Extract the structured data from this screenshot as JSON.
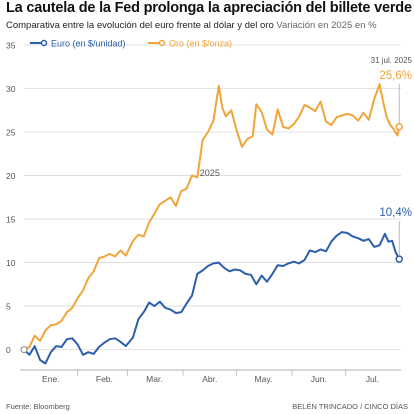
{
  "header": {
    "title": "La cautela de la Fed prolonga la apreciación del billete verde",
    "subtitle": "Comparativa entre la evolución del euro frente al dólar y del oro",
    "subtitle_note": "Variación en 2025 en %"
  },
  "footer": {
    "source": "Fuente: Bloomberg",
    "credit": "BELÉN TRINCADO / CINCO DÍAS"
  },
  "colors": {
    "euro": "#2b5fab",
    "gold": "#f0a53a",
    "grid": "#d9d9d9",
    "axis_text": "#555555"
  },
  "chart_data": {
    "type": "line",
    "title": "La cautela de la Fed prolonga la apreciación del billete verde",
    "subtitle": "Comparativa entre la evolución del euro frente al dólar y del oro Variación en 2025 en %",
    "x_unit": "day of year 2025",
    "x_range": [
      1,
      212
    ],
    "ylim": [
      -2,
      35
    ],
    "yticks": [
      0,
      5,
      10,
      15,
      20,
      25,
      30,
      35
    ],
    "months": [
      {
        "label": "Ene.",
        "day": 16
      },
      {
        "label": "Feb.",
        "day": 46
      },
      {
        "label": "Mar.",
        "day": 74
      },
      {
        "label": "Abr.",
        "day": 105
      },
      {
        "label": "May.",
        "day": 135
      },
      {
        "label": "Jun.",
        "day": 166
      },
      {
        "label": "Jul.",
        "day": 196
      }
    ],
    "year_label": "2025",
    "year_label_day": 105,
    "end_date_label": "31 jul. 2025",
    "legend_position": "top-left",
    "grid": true,
    "series": [
      {
        "name": "Euro (en $/unidad)",
        "end_label": "10,4%",
        "points": [
          [
            1,
            0
          ],
          [
            4,
            -0.6
          ],
          [
            7,
            0.4
          ],
          [
            10,
            -1.2
          ],
          [
            13,
            -1.6
          ],
          [
            16,
            -0.3
          ],
          [
            19,
            0.4
          ],
          [
            22,
            0.3
          ],
          [
            25,
            1.2
          ],
          [
            28,
            1.3
          ],
          [
            31,
            0.6
          ],
          [
            34,
            -0.6
          ],
          [
            37,
            -0.3
          ],
          [
            40,
            -0.5
          ],
          [
            43,
            0.3
          ],
          [
            46,
            0.8
          ],
          [
            49,
            1.2
          ],
          [
            52,
            1.3
          ],
          [
            55,
            0.9
          ],
          [
            58,
            0.4
          ],
          [
            62,
            1.4
          ],
          [
            65,
            3.5
          ],
          [
            68,
            4.3
          ],
          [
            71,
            5.4
          ],
          [
            74,
            5.0
          ],
          [
            77,
            5.5
          ],
          [
            80,
            4.8
          ],
          [
            83,
            4.6
          ],
          [
            86,
            4.2
          ],
          [
            89,
            4.3
          ],
          [
            92,
            5.3
          ],
          [
            95,
            6.2
          ],
          [
            98,
            8.7
          ],
          [
            101,
            9.1
          ],
          [
            104,
            9.6
          ],
          [
            107,
            9.9
          ],
          [
            110,
            10.0
          ],
          [
            113,
            9.4
          ],
          [
            116,
            9.0
          ],
          [
            119,
            9.2
          ],
          [
            122,
            9.1
          ],
          [
            125,
            8.7
          ],
          [
            128,
            8.6
          ],
          [
            131,
            7.5
          ],
          [
            134,
            8.5
          ],
          [
            137,
            7.8
          ],
          [
            140,
            8.7
          ],
          [
            143,
            9.7
          ],
          [
            146,
            9.6
          ],
          [
            149,
            9.9
          ],
          [
            152,
            10.1
          ],
          [
            155,
            9.9
          ],
          [
            158,
            10.3
          ],
          [
            161,
            11.4
          ],
          [
            164,
            11.2
          ],
          [
            167,
            11.5
          ],
          [
            170,
            11.3
          ],
          [
            173,
            12.4
          ],
          [
            176,
            13.1
          ],
          [
            179,
            13.5
          ],
          [
            182,
            13.4
          ],
          [
            185,
            13.0
          ],
          [
            188,
            12.8
          ],
          [
            191,
            12.5
          ],
          [
            194,
            12.7
          ],
          [
            197,
            11.8
          ],
          [
            200,
            12.0
          ],
          [
            203,
            13.3
          ],
          [
            205,
            12.4
          ],
          [
            207,
            12.5
          ],
          [
            209,
            11.2
          ],
          [
            211,
            10.4
          ]
        ]
      },
      {
        "name": "Oro (en $/onza)",
        "end_label": "25,6%",
        "points": [
          [
            1,
            0
          ],
          [
            4,
            0.3
          ],
          [
            7,
            1.6
          ],
          [
            10,
            1.0
          ],
          [
            13,
            2.2
          ],
          [
            16,
            2.8
          ],
          [
            19,
            2.9
          ],
          [
            22,
            3.3
          ],
          [
            25,
            4.3
          ],
          [
            28,
            4.8
          ],
          [
            31,
            5.9
          ],
          [
            34,
            6.8
          ],
          [
            37,
            8.2
          ],
          [
            40,
            9.0
          ],
          [
            43,
            10.5
          ],
          [
            46,
            10.7
          ],
          [
            49,
            11.0
          ],
          [
            52,
            10.7
          ],
          [
            55,
            11.4
          ],
          [
            58,
            10.8
          ],
          [
            62,
            12.5
          ],
          [
            65,
            13.2
          ],
          [
            68,
            13.0
          ],
          [
            71,
            14.6
          ],
          [
            74,
            15.6
          ],
          [
            77,
            16.7
          ],
          [
            80,
            17.1
          ],
          [
            83,
            17.5
          ],
          [
            86,
            16.5
          ],
          [
            89,
            18.2
          ],
          [
            92,
            18.5
          ],
          [
            95,
            20.0
          ],
          [
            98,
            19.8
          ],
          [
            101,
            24.1
          ],
          [
            104,
            25.0
          ],
          [
            107,
            26.3
          ],
          [
            110,
            30.3
          ],
          [
            112,
            27.8
          ],
          [
            114,
            26.8
          ],
          [
            117,
            27.5
          ],
          [
            120,
            25.2
          ],
          [
            123,
            23.3
          ],
          [
            126,
            24.2
          ],
          [
            129,
            24.5
          ],
          [
            131,
            28.2
          ],
          [
            134,
            27.3
          ],
          [
            137,
            25.3
          ],
          [
            140,
            24.7
          ],
          [
            143,
            27.6
          ],
          [
            146,
            25.6
          ],
          [
            149,
            25.4
          ],
          [
            152,
            25.9
          ],
          [
            155,
            26.8
          ],
          [
            158,
            28.1
          ],
          [
            161,
            27.8
          ],
          [
            164,
            27.4
          ],
          [
            167,
            28.5
          ],
          [
            170,
            26.2
          ],
          [
            173,
            25.8
          ],
          [
            176,
            26.7
          ],
          [
            179,
            26.9
          ],
          [
            182,
            27.1
          ],
          [
            185,
            26.9
          ],
          [
            188,
            26.3
          ],
          [
            191,
            27.2
          ],
          [
            194,
            26.4
          ],
          [
            197,
            28.8
          ],
          [
            200,
            30.5
          ],
          [
            202,
            28.5
          ],
          [
            204,
            26.7
          ],
          [
            206,
            25.8
          ],
          [
            208,
            25.3
          ],
          [
            210,
            24.6
          ],
          [
            211,
            25.6
          ]
        ]
      }
    ]
  }
}
